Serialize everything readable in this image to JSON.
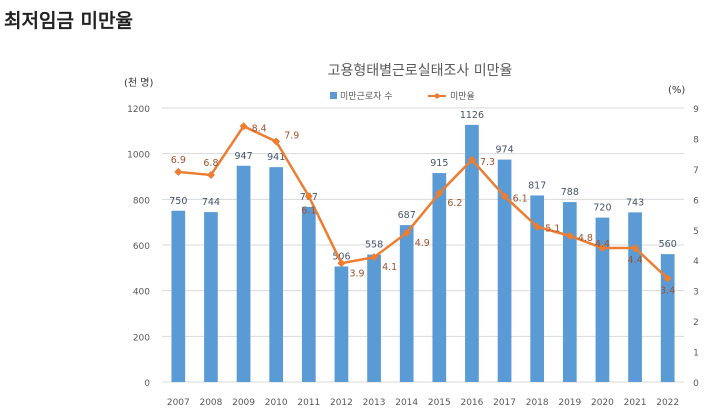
{
  "page_title": "최저임금 미만율",
  "chart_data": {
    "type": "bar+line",
    "title": "고용형태별근로실태조사  미만율",
    "categories": [
      "2007",
      "2008",
      "2009",
      "2010",
      "2011",
      "2012",
      "2013",
      "2014",
      "2015",
      "2016",
      "2017",
      "2018",
      "2019",
      "2020",
      "2021",
      "2022"
    ],
    "series": [
      {
        "name": "미만근로자 수",
        "type": "bar",
        "axis": "left",
        "color": "#5B9BD5",
        "values": [
          750,
          744,
          947,
          941,
          767,
          506,
          558,
          687,
          915,
          1126,
          974,
          817,
          788,
          720,
          743,
          560
        ]
      },
      {
        "name": "미만율",
        "type": "line",
        "axis": "right",
        "color": "#ED7D31",
        "values": [
          6.9,
          6.8,
          8.4,
          7.9,
          6.1,
          3.9,
          4.1,
          4.9,
          6.2,
          7.3,
          6.1,
          5.1,
          4.8,
          4.4,
          4.4,
          3.4
        ]
      }
    ],
    "ylabel_left": "(천 명)",
    "ylabel_right": "(%)",
    "ylim_left": [
      0,
      1200
    ],
    "yticks_left": [
      "0",
      "200",
      "400",
      "600",
      "800",
      "1000",
      "1200"
    ],
    "ylim_right": [
      0,
      9
    ],
    "yticks_right": [
      "0",
      "1",
      "2",
      "3",
      "4",
      "5",
      "6",
      "7",
      "8",
      "9"
    ],
    "grid": true,
    "legend": "top-center"
  }
}
